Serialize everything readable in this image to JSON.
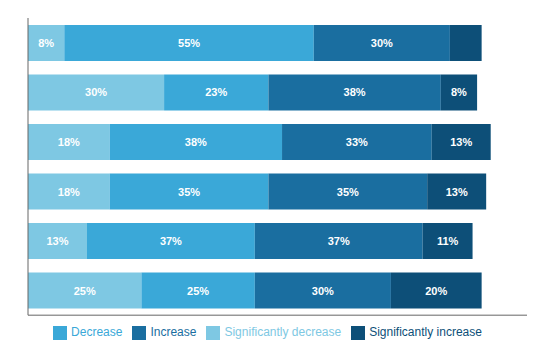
{
  "chart_data": {
    "type": "bar",
    "orientation": "horizontal",
    "stacked": true,
    "categories": [
      null,
      null,
      null,
      null,
      null,
      null
    ],
    "series": [
      {
        "name": "Significantly decrease",
        "color": "#7ec8e3",
        "values": [
          8,
          30,
          18,
          18,
          13,
          25
        ],
        "value_labels": [
          "8%",
          "30%",
          "18%",
          "18%",
          "13%",
          "25%"
        ]
      },
      {
        "name": "Decrease",
        "color": "#3aa8d8",
        "values": [
          55,
          23,
          38,
          35,
          37,
          25
        ],
        "value_labels": [
          "55%",
          "23%",
          "38%",
          "35%",
          "37%",
          "25%"
        ]
      },
      {
        "name": "Increase",
        "color": "#1a6ea0",
        "values": [
          30,
          38,
          33,
          35,
          37,
          30
        ],
        "value_labels": [
          "30%",
          "38%",
          "33%",
          "35%",
          "37%",
          "30%"
        ]
      },
      {
        "name": "Significantly increase",
        "color": "#0d4f78",
        "values": [
          7,
          8,
          13,
          13,
          11,
          20
        ],
        "value_labels": [
          null,
          "8%",
          "13%",
          "13%",
          "11%",
          "20%"
        ]
      }
    ],
    "xlim": [
      0,
      110
    ],
    "xticks": [
      0,
      10,
      20,
      30,
      40,
      50,
      60,
      70,
      80,
      90,
      100,
      110
    ],
    "data_labels": true,
    "tick_labels": false,
    "grid": false,
    "legend": "bottom"
  }
}
